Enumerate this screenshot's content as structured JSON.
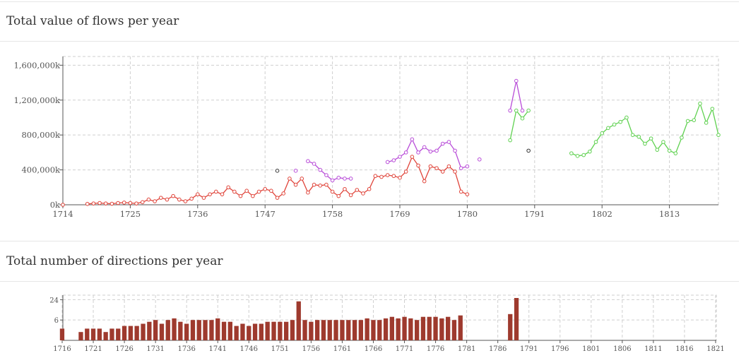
{
  "sections": {
    "flows_title": "Total value of flows per year",
    "directions_title": "Total number of directions per year"
  },
  "chart_data": [
    {
      "type": "line",
      "title": "Total value of flows per year",
      "xlim": [
        1714,
        1821
      ],
      "ylim": [
        0,
        1700000
      ],
      "x_ticks": [
        1714,
        1725,
        1736,
        1747,
        1758,
        1769,
        1780,
        1791,
        1802,
        1813
      ],
      "y_ticks": [
        0,
        400000,
        800000,
        1200000,
        1600000
      ],
      "y_tick_labels": [
        "0k",
        "400,000k",
        "800,000k",
        "1,200,000k",
        "1,600,000k"
      ],
      "grid": true,
      "series": [
        {
          "color": "#e0443a",
          "points": [
            [
              1714,
              0
            ],
            [
              1718,
              10000
            ],
            [
              1719,
              15000
            ],
            [
              1720,
              20000
            ],
            [
              1721,
              15000
            ],
            [
              1722,
              12000
            ],
            [
              1723,
              20000
            ],
            [
              1724,
              25000
            ],
            [
              1725,
              20000
            ],
            [
              1726,
              15000
            ],
            [
              1727,
              30000
            ],
            [
              1728,
              60000
            ],
            [
              1729,
              40000
            ],
            [
              1730,
              80000
            ],
            [
              1731,
              60000
            ],
            [
              1732,
              100000
            ],
            [
              1733,
              60000
            ],
            [
              1734,
              40000
            ],
            [
              1735,
              70000
            ],
            [
              1736,
              120000
            ],
            [
              1737,
              80000
            ],
            [
              1738,
              120000
            ],
            [
              1739,
              150000
            ],
            [
              1740,
              120000
            ],
            [
              1741,
              200000
            ],
            [
              1742,
              150000
            ],
            [
              1743,
              100000
            ],
            [
              1744,
              160000
            ],
            [
              1745,
              100000
            ],
            [
              1746,
              150000
            ],
            [
              1747,
              180000
            ],
            [
              1748,
              160000
            ],
            [
              1749,
              80000
            ],
            [
              1750,
              130000
            ],
            [
              1751,
              300000
            ],
            [
              1752,
              230000
            ],
            [
              1753,
              300000
            ],
            [
              1754,
              140000
            ],
            [
              1755,
              230000
            ],
            [
              1756,
              220000
            ],
            [
              1757,
              230000
            ],
            [
              1758,
              150000
            ],
            [
              1759,
              100000
            ],
            [
              1760,
              180000
            ],
            [
              1761,
              110000
            ],
            [
              1762,
              170000
            ],
            [
              1763,
              130000
            ],
            [
              1764,
              180000
            ],
            [
              1765,
              330000
            ],
            [
              1766,
              320000
            ],
            [
              1767,
              340000
            ],
            [
              1768,
              330000
            ],
            [
              1769,
              310000
            ],
            [
              1770,
              380000
            ],
            [
              1771,
              550000
            ],
            [
              1772,
              450000
            ],
            [
              1773,
              270000
            ],
            [
              1774,
              440000
            ],
            [
              1775,
              420000
            ],
            [
              1776,
              380000
            ],
            [
              1777,
              440000
            ],
            [
              1778,
              380000
            ],
            [
              1779,
              150000
            ],
            [
              1780,
              120000
            ]
          ]
        },
        {
          "color": "#b84cd8",
          "points": [
            [
              1752,
              390000
            ],
            [
              1754,
              500000
            ],
            [
              1755,
              470000
            ],
            [
              1756,
              400000
            ],
            [
              1757,
              340000
            ],
            [
              1758,
              280000
            ],
            [
              1759,
              310000
            ],
            [
              1760,
              300000
            ],
            [
              1761,
              300000
            ],
            [
              1767,
              490000
            ],
            [
              1768,
              510000
            ],
            [
              1769,
              550000
            ],
            [
              1770,
              600000
            ],
            [
              1771,
              750000
            ],
            [
              1772,
              600000
            ],
            [
              1773,
              660000
            ],
            [
              1774,
              610000
            ],
            [
              1775,
              620000
            ],
            [
              1776,
              700000
            ],
            [
              1777,
              720000
            ],
            [
              1778,
              620000
            ],
            [
              1779,
              420000
            ],
            [
              1780,
              440000
            ],
            [
              1782,
              520000
            ],
            [
              1787,
              1080000
            ],
            [
              1788,
              1420000
            ],
            [
              1789,
              1080000
            ]
          ]
        },
        {
          "color": "#5fd150",
          "points": [
            [
              1787,
              740000
            ],
            [
              1788,
              1080000
            ],
            [
              1789,
              990000
            ],
            [
              1790,
              1080000
            ],
            [
              1797,
              590000
            ],
            [
              1798,
              560000
            ],
            [
              1799,
              570000
            ],
            [
              1800,
              610000
            ],
            [
              1801,
              720000
            ],
            [
              1802,
              820000
            ],
            [
              1803,
              880000
            ],
            [
              1804,
              920000
            ],
            [
              1805,
              950000
            ],
            [
              1806,
              1000000
            ],
            [
              1807,
              800000
            ],
            [
              1808,
              780000
            ],
            [
              1809,
              700000
            ],
            [
              1810,
              760000
            ],
            [
              1811,
              630000
            ],
            [
              1812,
              720000
            ],
            [
              1813,
              620000
            ],
            [
              1814,
              590000
            ],
            [
              1815,
              770000
            ],
            [
              1816,
              960000
            ],
            [
              1817,
              970000
            ],
            [
              1818,
              1160000
            ],
            [
              1819,
              940000
            ],
            [
              1820,
              1100000
            ],
            [
              1821,
              800000
            ]
          ]
        },
        {
          "color": "#333333",
          "points": [
            [
              1749,
              390000
            ],
            [
              1790,
              620000
            ]
          ]
        }
      ]
    },
    {
      "type": "bar",
      "title": "Total number of directions per year",
      "xlim": [
        1716,
        1821
      ],
      "x_ticks": [
        1716,
        1721,
        1726,
        1731,
        1736,
        1741,
        1746,
        1751,
        1756,
        1761,
        1766,
        1771,
        1776,
        1781,
        1786,
        1791,
        1796,
        1801,
        1806,
        1811,
        1816,
        1821
      ],
      "y_ticks": [
        6,
        24
      ],
      "color": "#9e3a2e",
      "x": [
        1716,
        1719,
        1720,
        1721,
        1722,
        1723,
        1724,
        1725,
        1726,
        1727,
        1728,
        1729,
        1730,
        1731,
        1732,
        1733,
        1734,
        1735,
        1736,
        1737,
        1738,
        1739,
        1740,
        1741,
        1742,
        1743,
        1744,
        1745,
        1746,
        1747,
        1748,
        1749,
        1750,
        1751,
        1752,
        1753,
        1754,
        1755,
        1756,
        1757,
        1758,
        1759,
        1760,
        1761,
        1762,
        1763,
        1764,
        1765,
        1766,
        1767,
        1768,
        1769,
        1770,
        1771,
        1772,
        1773,
        1774,
        1775,
        1776,
        1777,
        1778,
        1779,
        1780,
        1788,
        1789
      ],
      "values": [
        2,
        1,
        2,
        2,
        2,
        1,
        2,
        2,
        3,
        3,
        3,
        4,
        5,
        6,
        4,
        6,
        7,
        5,
        4,
        6,
        6,
        6,
        6,
        7,
        5,
        5,
        3,
        4,
        3,
        4,
        4,
        5,
        5,
        5,
        5,
        6,
        22,
        6,
        5,
        6,
        6,
        6,
        6,
        6,
        6,
        6,
        6,
        7,
        6,
        6,
        7,
        8,
        7,
        8,
        7,
        6,
        8,
        8,
        8,
        7,
        8,
        6,
        9,
        10,
        26
      ]
    }
  ]
}
